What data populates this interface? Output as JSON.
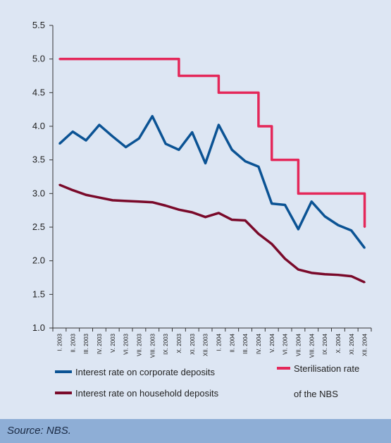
{
  "chart_data": {
    "type": "line",
    "categories": [
      "I. 2003",
      "II. 2003",
      "III. 2003",
      "IV. 2003",
      "V. 2003",
      "VI. 2003",
      "VII. 2003",
      "VIII. 2003",
      "IX. 2003",
      "X. 2003",
      "XI. 2003",
      "XII. 2003",
      "I. 2004",
      "II. 2004",
      "III. 2004",
      "IV. 2004",
      "V. 2004",
      "VI. 2004",
      "VII. 2004",
      "VIII. 2004",
      "IX. 2004",
      "X. 2004",
      "XI. 2004",
      "XII. 2004"
    ],
    "ylim": [
      1.0,
      5.5
    ],
    "yticks": [
      "1.0",
      "1.5",
      "2.0",
      "2.5",
      "3.0",
      "3.5",
      "4.0",
      "4.5",
      "5.0",
      "5.5"
    ],
    "series": [
      {
        "name": "Interest rate on corporate deposits",
        "color": "#0b5394",
        "step": false,
        "values": [
          3.74,
          3.92,
          3.79,
          4.02,
          3.85,
          3.69,
          3.82,
          4.15,
          3.74,
          3.65,
          3.91,
          3.45,
          4.02,
          3.65,
          3.48,
          3.4,
          2.85,
          2.83,
          2.47,
          2.88,
          2.66,
          2.53,
          2.45,
          2.19
        ]
      },
      {
        "name": "Interest rate on household deposits",
        "color": "#7a0a2a",
        "step": false,
        "values": [
          3.13,
          3.05,
          2.98,
          2.94,
          2.9,
          2.89,
          2.88,
          2.87,
          2.82,
          2.76,
          2.72,
          2.65,
          2.71,
          2.61,
          2.6,
          2.4,
          2.25,
          2.03,
          1.87,
          1.82,
          1.8,
          1.79,
          1.77,
          1.68
        ]
      },
      {
        "name": "Sterilisation rate of the NBS",
        "color": "#e4285a",
        "step": true,
        "values": [
          5.0,
          5.0,
          5.0,
          5.0,
          5.0,
          5.0,
          5.0,
          5.0,
          5.0,
          4.75,
          4.75,
          4.75,
          4.5,
          4.5,
          4.5,
          4.0,
          3.5,
          3.5,
          3.0,
          3.0,
          3.0,
          3.0,
          3.0,
          2.5
        ]
      }
    ],
    "legend": {
      "corporate": "Interest rate on corporate deposits",
      "household": "Interest rate on household deposits",
      "nbs_line1": "Sterilisation rate",
      "nbs_line2": "of the NBS"
    },
    "grid": false
  },
  "source": "Source: NBS."
}
